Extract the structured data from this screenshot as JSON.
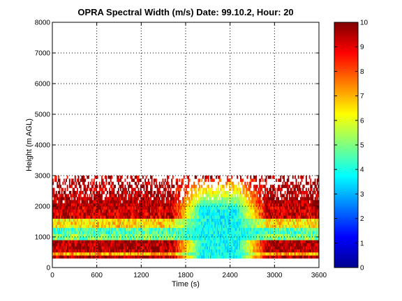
{
  "chart_data": {
    "type": "heatmap",
    "title": "OPRA Spectral Width (m/s)  Date: 99.10.2, Hour: 20",
    "xlabel": "Time (s)",
    "ylabel": "Height (m AGL)",
    "xlim": [
      0,
      3600
    ],
    "ylim": [
      0,
      8000
    ],
    "x_ticks": [
      0,
      600,
      1200,
      1800,
      2400,
      3000,
      3600
    ],
    "x_tick_labels": [
      "0",
      "600",
      "1200",
      "1800",
      "2400",
      "3000",
      "3600"
    ],
    "y_ticks": [
      0,
      1000,
      2000,
      3000,
      4000,
      5000,
      6000,
      7000,
      8000
    ],
    "y_tick_labels": [
      "0",
      "1000",
      "2000",
      "3000",
      "4000",
      "5000",
      "6000",
      "7000",
      "8000"
    ],
    "grid": true,
    "colorbar": {
      "range": [
        0,
        10
      ],
      "ticks": [
        0,
        1,
        2,
        3,
        4,
        5,
        6,
        7,
        8,
        9,
        10
      ],
      "tick_labels": [
        "0",
        "1",
        "2",
        "3",
        "4",
        "5",
        "6",
        "7",
        "8",
        "9",
        "10"
      ],
      "colormap": "jet"
    },
    "data_extent": {
      "x": [
        0,
        3600
      ],
      "y": [
        300,
        3000
      ]
    },
    "bands": [
      {
        "height": [
          300,
          400
        ],
        "value": 9.6
      },
      {
        "height": [
          400,
          500
        ],
        "value": 7.0
      },
      {
        "height": [
          500,
          700
        ],
        "value": 9.5
      },
      {
        "height": [
          700,
          900
        ],
        "value": 9.6
      },
      {
        "height": [
          900,
          1100
        ],
        "value": 5.0
      },
      {
        "height": [
          1100,
          1300
        ],
        "value": 4.5
      },
      {
        "height": [
          1300,
          1600
        ],
        "value": 6.5
      },
      {
        "height": [
          1600,
          2000
        ],
        "value": 9.2
      },
      {
        "height": [
          2000,
          3000
        ],
        "value": 9.5
      }
    ],
    "low_width_region": {
      "time": [
        1600,
        2900
      ],
      "height": [
        300,
        2800
      ],
      "value": 3.8
    }
  }
}
